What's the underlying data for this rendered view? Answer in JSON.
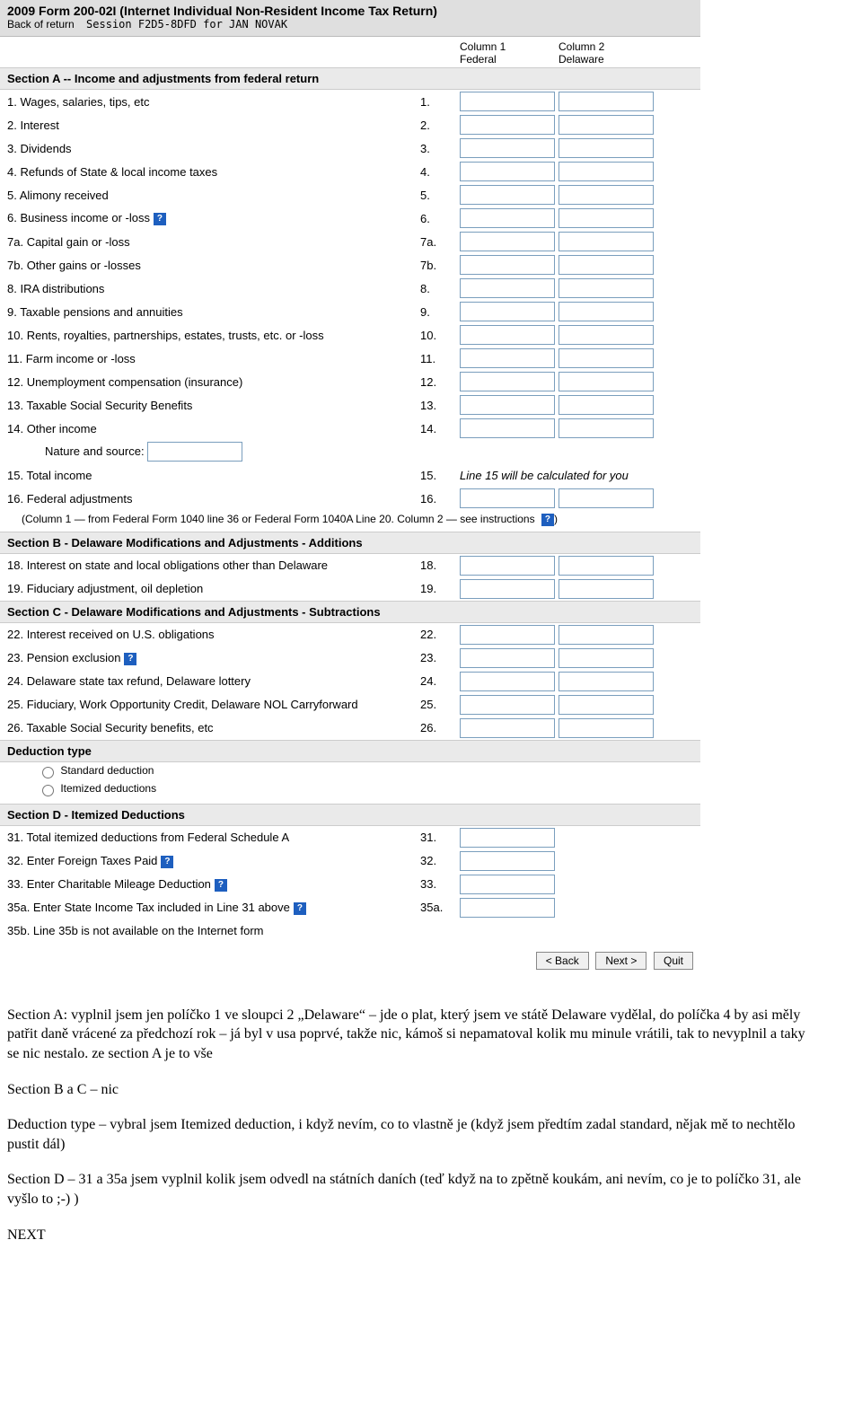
{
  "header": {
    "title": "2009 Form 200-02I (Internet Individual Non-Resident Income Tax Return)",
    "back_of_return": "Back of return",
    "session_prefix": "Session",
    "session_id": "F2D5-8DFD",
    "session_for": "for",
    "session_name": "JAN NOVAK"
  },
  "col_headers": {
    "c1a": "Column 1",
    "c1b": "Federal",
    "c2a": "Column 2",
    "c2b": "Delaware"
  },
  "sectionA": {
    "title": "Section A -- Income and adjustments from federal return",
    "rows": [
      {
        "num": "1.",
        "label": "Wages, salaries, tips, etc",
        "rn": "1.",
        "c1": true,
        "c2": true
      },
      {
        "num": "2.",
        "label": "Interest",
        "rn": "2.",
        "c1": true,
        "c2": true
      },
      {
        "num": "3.",
        "label": "Dividends",
        "rn": "3.",
        "c1": true,
        "c2": true
      },
      {
        "num": "4.",
        "label": "Refunds of State & local income taxes",
        "rn": "4.",
        "c1": true,
        "c2": true
      },
      {
        "num": "5.",
        "label": "Alimony received",
        "rn": "5.",
        "c1": true,
        "c2": true
      },
      {
        "num": "6.",
        "label": "Business income or -loss",
        "rn": "6.",
        "c1": true,
        "c2": true,
        "help": true
      },
      {
        "num": "7a.",
        "label": "Capital gain or -loss",
        "rn": "7a.",
        "c1": true,
        "c2": true
      },
      {
        "num": "7b.",
        "label": "Other gains or -losses",
        "rn": "7b.",
        "c1": true,
        "c2": true
      },
      {
        "num": "8.",
        "label": "IRA distributions",
        "rn": "8.",
        "c1": true,
        "c2": true
      },
      {
        "num": "9.",
        "label": "Taxable pensions and annuities",
        "rn": "9.",
        "c1": true,
        "c2": true
      },
      {
        "num": "10.",
        "label": "Rents, royalties, partnerships, estates, trusts, etc. or -loss",
        "rn": "10.",
        "c1": true,
        "c2": true
      },
      {
        "num": "11.",
        "label": "Farm income or -loss",
        "rn": "11.",
        "c1": true,
        "c2": true
      },
      {
        "num": "12.",
        "label": "Unemployment compensation (insurance)",
        "rn": "12.",
        "c1": true,
        "c2": true
      },
      {
        "num": "13.",
        "label": "Taxable Social Security Benefits",
        "rn": "13.",
        "c1": true,
        "c2": true
      },
      {
        "num": "14.",
        "label": "Other income",
        "rn": "14.",
        "c1": true,
        "c2": true
      }
    ],
    "nature_label": "Nature and source:",
    "row15": {
      "num": "15.",
      "label": "Total income",
      "rn": "15.",
      "note": "Line 15 will be calculated for you"
    },
    "row16": {
      "num": "16.",
      "label": "Federal adjustments",
      "rn": "16."
    },
    "foot_note": "(Column 1 — from Federal Form 1040 line 36 or Federal Form 1040A Line 20.  Column 2 — see instructions",
    "foot_paren": ")"
  },
  "sectionB": {
    "title": "Section B - Delaware Modifications and Adjustments - Additions",
    "rows": [
      {
        "num": "18.",
        "label": "Interest on state and local obligations other than Delaware",
        "rn": "18.",
        "c1": true,
        "c2": true
      },
      {
        "num": "19.",
        "label": "Fiduciary adjustment, oil depletion",
        "rn": "19.",
        "c1": true,
        "c2": true
      }
    ]
  },
  "sectionC": {
    "title": "Section C - Delaware Modifications and Adjustments - Subtractions",
    "rows": [
      {
        "num": "22.",
        "label": "Interest received on U.S. obligations",
        "rn": "22.",
        "c1": true,
        "c2": true
      },
      {
        "num": "23.",
        "label": "Pension exclusion",
        "rn": "23.",
        "c1": true,
        "c2": true,
        "help": true
      },
      {
        "num": "24.",
        "label": "Delaware state tax refund, Delaware lottery",
        "rn": "24.",
        "c1": true,
        "c2": true
      },
      {
        "num": "25.",
        "label": "Fiduciary, Work Opportunity Credit, Delaware NOL Carryforward",
        "rn": "25.",
        "c1": true,
        "c2": true
      },
      {
        "num": "26.",
        "label": "Taxable Social Security benefits, etc",
        "rn": "26.",
        "c1": true,
        "c2": true
      }
    ]
  },
  "deduction": {
    "title": "Deduction type",
    "opt1": "Standard deduction",
    "opt2": "Itemized deductions"
  },
  "sectionD": {
    "title": "Section D - Itemized Deductions",
    "rows": [
      {
        "num": "31.",
        "label": "Total itemized deductions from Federal Schedule A",
        "rn": "31.",
        "c1": true
      },
      {
        "num": "32.",
        "label": "Enter Foreign Taxes Paid",
        "rn": "32.",
        "c1": true,
        "help": true
      },
      {
        "num": "33.",
        "label": "Enter Charitable Mileage Deduction",
        "rn": "33.",
        "c1": true,
        "help": true
      },
      {
        "num": "35a.",
        "label": "Enter State Income Tax included in Line 31 above",
        "rn": "35a.",
        "c1": true,
        "help": true
      },
      {
        "num": "35b.",
        "label": "Line 35b is not available on the Internet form",
        "rn": ""
      }
    ]
  },
  "buttons": {
    "back": "< Back",
    "next": "Next >",
    "quit": "Quit"
  },
  "body": {
    "p1": "Section A: vyplnil jsem jen políčko 1 ve sloupci 2 „Delaware“ – jde o plat, který jsem ve státě Delaware vydělal, do políčka 4 by asi měly patřit daně vrácené za předchozí rok – já byl v usa poprvé, takže nic, kámoš si nepamatoval kolik mu minule vrátili, tak to nevyplnil a taky se nic nestalo. ze section A je to vše",
    "p2": "Section B a C – nic",
    "p3": "Deduction type – vybral jsem Itemized deduction, i když nevím, co to vlastně je (když jsem předtím zadal standard, nějak mě to nechtělo pustit dál)",
    "p4": "Section D – 31 a 35a jsem vyplnil kolik jsem odvedl na státních daních (teď když na to zpětně koukám, ani nevím, co je to políčko 31, ale vyšlo to ;-) )",
    "next": "NEXT"
  }
}
